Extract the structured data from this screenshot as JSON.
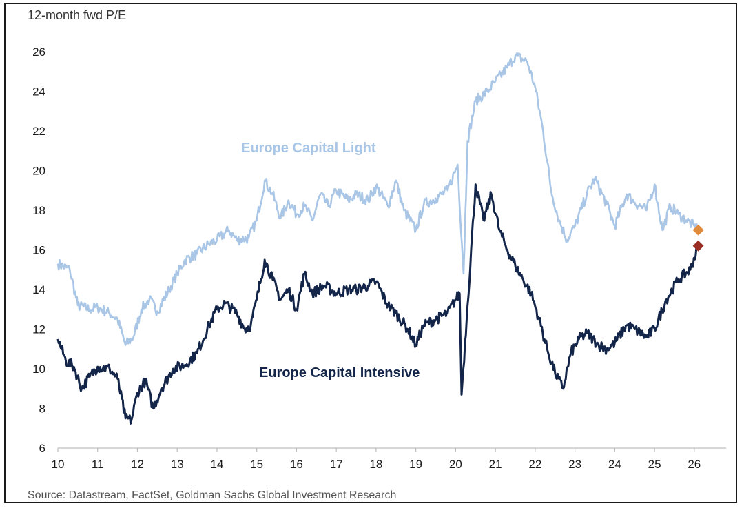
{
  "chart_data": {
    "type": "line",
    "ylabel": "12-month fwd P/E",
    "source": "Source: Datastream, FactSet, Goldman Sachs Global Investment Research",
    "ylim": [
      6,
      26
    ],
    "xlim": [
      10,
      26.8
    ],
    "y_ticks": [
      "6",
      "8",
      "10",
      "12",
      "14",
      "16",
      "18",
      "20",
      "22",
      "24",
      "26"
    ],
    "x_ticks": [
      "10",
      "11",
      "12",
      "13",
      "14",
      "15",
      "16",
      "17",
      "18",
      "19",
      "20",
      "21",
      "22",
      "23",
      "24",
      "25",
      "26"
    ],
    "grid": false,
    "series": [
      {
        "name": "Europe Capital Light",
        "label": "Europe Capital Light",
        "color": "#a9c6e6",
        "x": [
          10.0,
          10.3,
          10.5,
          10.8,
          11.0,
          11.3,
          11.5,
          11.7,
          11.9,
          12.1,
          12.3,
          12.5,
          12.8,
          13.0,
          13.2,
          13.5,
          13.8,
          14.0,
          14.3,
          14.5,
          14.8,
          15.0,
          15.2,
          15.4,
          15.6,
          15.8,
          16.0,
          16.2,
          16.4,
          16.6,
          16.8,
          17.0,
          17.3,
          17.5,
          17.8,
          18.0,
          18.3,
          18.5,
          18.7,
          19.0,
          19.2,
          19.5,
          19.8,
          20.05,
          20.2,
          20.3,
          20.5,
          20.8,
          21.0,
          21.3,
          21.5,
          21.8,
          22.0,
          22.2,
          22.4,
          22.6,
          22.8,
          23.0,
          23.3,
          23.5,
          23.8,
          24.0,
          24.3,
          24.5,
          24.8,
          25.0,
          25.2,
          25.4,
          25.6,
          25.8,
          26.0,
          26.1
        ],
        "values": [
          15.3,
          15.0,
          13.2,
          13.0,
          13.1,
          12.8,
          12.5,
          11.2,
          11.6,
          13.0,
          13.5,
          12.9,
          14.0,
          14.8,
          15.5,
          15.8,
          16.3,
          16.5,
          17.0,
          16.5,
          16.6,
          17.5,
          19.5,
          18.8,
          17.6,
          18.5,
          17.8,
          18.2,
          17.5,
          18.8,
          18.2,
          19.0,
          18.5,
          18.8,
          18.5,
          19.2,
          18.2,
          19.5,
          18.0,
          17.0,
          18.3,
          18.6,
          19.0,
          20.3,
          14.8,
          21.5,
          23.5,
          24.0,
          24.5,
          25.2,
          25.8,
          25.5,
          24.2,
          22.0,
          19.0,
          17.5,
          16.5,
          17.2,
          18.8,
          19.6,
          18.3,
          17.2,
          18.8,
          18.4,
          18.0,
          19.3,
          17.0,
          18.2,
          17.8,
          17.5,
          17.2,
          17.0
        ],
        "end_marker_color": "#e08a3c"
      },
      {
        "name": "Europe Capital Intensive",
        "label": "Europe Capital Intensive",
        "color": "#14254a",
        "x": [
          10.0,
          10.2,
          10.4,
          10.6,
          10.8,
          11.0,
          11.3,
          11.5,
          11.7,
          11.85,
          12.0,
          12.2,
          12.4,
          12.6,
          12.9,
          13.2,
          13.5,
          13.8,
          14.0,
          14.2,
          14.5,
          14.7,
          14.85,
          15.0,
          15.2,
          15.4,
          15.6,
          15.8,
          16.0,
          16.2,
          16.4,
          16.7,
          17.0,
          17.3,
          17.5,
          17.8,
          18.0,
          18.3,
          18.5,
          18.8,
          19.0,
          19.2,
          19.5,
          19.8,
          20.0,
          20.1,
          20.15,
          20.3,
          20.5,
          20.7,
          20.9,
          21.1,
          21.3,
          21.5,
          21.7,
          21.9,
          22.1,
          22.3,
          22.5,
          22.7,
          22.9,
          23.1,
          23.3,
          23.6,
          23.8,
          24.0,
          24.3,
          24.5,
          24.8,
          25.0,
          25.3,
          25.6,
          25.9,
          26.1
        ],
        "values": [
          11.5,
          10.4,
          10.1,
          9.0,
          9.6,
          10.1,
          10.0,
          9.5,
          7.5,
          7.4,
          8.8,
          9.4,
          8.0,
          9.0,
          10.0,
          10.2,
          10.8,
          12.2,
          13.0,
          13.3,
          12.8,
          12.0,
          12.2,
          13.5,
          15.5,
          14.5,
          13.5,
          14.0,
          13.0,
          14.8,
          13.8,
          14.2,
          13.8,
          14.0,
          14.0,
          14.2,
          14.4,
          13.2,
          12.8,
          12.0,
          11.2,
          12.2,
          12.5,
          12.8,
          13.5,
          13.8,
          8.7,
          13.2,
          19.3,
          17.5,
          18.8,
          17.0,
          16.0,
          15.2,
          14.5,
          13.8,
          12.5,
          11.0,
          9.8,
          9.0,
          10.8,
          11.5,
          11.8,
          11.2,
          11.0,
          11.3,
          12.2,
          12.0,
          11.6,
          12.0,
          13.5,
          14.5,
          15.0,
          16.2
        ],
        "end_marker_color": "#9a2e24"
      }
    ]
  }
}
